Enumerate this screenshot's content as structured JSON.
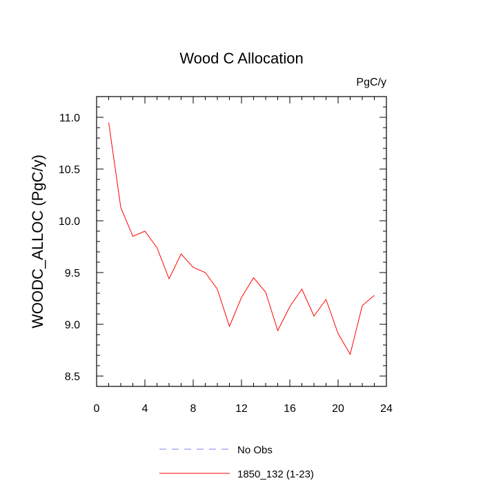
{
  "chart_data": {
    "type": "line",
    "title": "Wood C Allocation",
    "units_label": "PgC/y",
    "ylabel": "WOODC_ALLOC  (PgC/y)",
    "xlabel": "",
    "xlim": [
      0,
      24
    ],
    "ylim": [
      8.4,
      11.2
    ],
    "x_ticks": [
      0,
      4,
      8,
      12,
      16,
      20,
      24
    ],
    "y_ticks": [
      8.5,
      9.0,
      9.5,
      10.0,
      10.5,
      11.0
    ],
    "y_tick_labels": [
      "8.5",
      "9.0",
      "9.5",
      "10.0",
      "10.5",
      "11.0"
    ],
    "grid": false,
    "series": [
      {
        "name": "1850_132 (1-23)",
        "color": "#ff0000",
        "dash": "solid",
        "x": [
          1,
          2,
          3,
          4,
          5,
          6,
          7,
          8,
          9,
          10,
          11,
          12,
          13,
          14,
          15,
          16,
          17,
          18,
          19,
          20,
          21,
          22,
          23
        ],
        "values": [
          10.95,
          10.13,
          9.85,
          9.9,
          9.74,
          9.44,
          9.68,
          9.55,
          9.5,
          9.34,
          8.98,
          9.26,
          9.45,
          9.31,
          8.94,
          9.17,
          9.34,
          9.08,
          9.24,
          8.91,
          8.71,
          9.18,
          9.28
        ]
      }
    ],
    "legend": [
      {
        "label": "No Obs",
        "color": "#7f7fff",
        "dash": "dashed"
      },
      {
        "label": "1850_132 (1-23)",
        "color": "#ff0000",
        "dash": "solid"
      }
    ],
    "legend_position": "bottom-center"
  }
}
